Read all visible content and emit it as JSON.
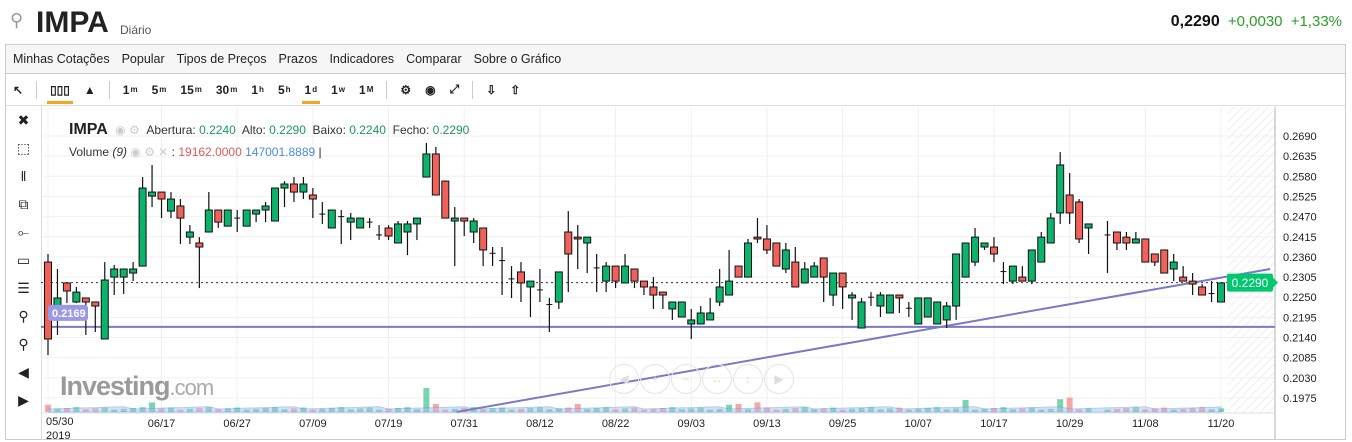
{
  "header": {
    "symbol": "IMPA",
    "period": "Diário",
    "price": "0,2290",
    "change": "+0,0030",
    "change_pct": "+1,33%"
  },
  "menu": [
    "Minhas Cotações",
    "Popular",
    "Tipos de Preços",
    "Prazos",
    "Indicadores",
    "Comparar",
    "Sobre o Gráfico"
  ],
  "toolbar": {
    "intervals": [
      {
        "n": "1",
        "s": "m"
      },
      {
        "n": "5",
        "s": "m"
      },
      {
        "n": "15",
        "s": "m"
      },
      {
        "n": "30",
        "s": "m"
      },
      {
        "n": "1",
        "s": "h"
      },
      {
        "n": "5",
        "s": "h"
      },
      {
        "n": "1",
        "s": "d"
      },
      {
        "n": "1",
        "s": "w"
      },
      {
        "n": "1",
        "s": "M"
      }
    ],
    "active_interval": "1d"
  },
  "left_tools": [
    "close-icon",
    "remove-drawing-icon",
    "remove-indicators-icon",
    "windows-icon",
    "line-tool-icon",
    "rectangle-tool-icon",
    "fib-tool-icon",
    "zoom-in-icon",
    "zoom-out-icon",
    "scroll-left-icon",
    "scroll-right-icon"
  ],
  "legend": {
    "symbol": "IMPA",
    "open_label": "Abertura:",
    "open": "0.2240",
    "high_label": "Alto:",
    "high": "0.2290",
    "low_label": "Baixo:",
    "low": "0.2240",
    "close_label": "Fecho:",
    "close": "0.2290",
    "volume_label": "Volume",
    "volume_param": "(9)",
    "volume_value": "19162.0000",
    "volume_ma": "147001.8889"
  },
  "logo": {
    "main": "Investing",
    ".com": ".com"
  },
  "colors": {
    "up": "#0bb36b",
    "down": "#f0615a",
    "line": "#7b78c4",
    "last_price": "#00c86e"
  },
  "chart_data": {
    "type": "candlestick",
    "y_ticks": [
      "0.2690",
      "0.2635",
      "0.2580",
      "0.2525",
      "0.2470",
      "0.2415",
      "0.2360",
      "0.2305",
      "0.2250",
      "0.2195",
      "0.2140",
      "0.2085",
      "0.2030",
      "0.1975"
    ],
    "ylim": [
      0.1975,
      0.269
    ],
    "last_price": "0.2290",
    "horizontal_line": {
      "value": 0.2169,
      "label": "0.2169"
    },
    "trend_line": [
      [
        43.2,
        0.1937
      ],
      [
        129.2,
        0.2327
      ]
    ],
    "x_ticks": [
      {
        "i": 0,
        "label": "05/30",
        "sub": "2019"
      },
      {
        "i": 12,
        "label": "06/17"
      },
      {
        "i": 20,
        "label": "06/27"
      },
      {
        "i": 28,
        "label": "07/09"
      },
      {
        "i": 36,
        "label": "07/19"
      },
      {
        "i": 44,
        "label": "07/31"
      },
      {
        "i": 52,
        "label": "08/12"
      },
      {
        "i": 60,
        "label": "08/22"
      },
      {
        "i": 68,
        "label": "09/03"
      },
      {
        "i": 76,
        "label": "09/13"
      },
      {
        "i": 84,
        "label": "09/25"
      },
      {
        "i": 92,
        "label": "10/07"
      },
      {
        "i": 100,
        "label": "10/17"
      },
      {
        "i": 108,
        "label": "10/29"
      },
      {
        "i": 116,
        "label": "11/08"
      },
      {
        "i": 124,
        "label": "11/20"
      }
    ],
    "candles": [
      [
        0.2346,
        0.2368,
        0.2092,
        0.2136
      ],
      [
        0.2188,
        0.2327,
        0.2147,
        0.2248
      ],
      [
        0.2289,
        0.2289,
        0.2234,
        0.2267
      ],
      [
        0.2237,
        0.2278,
        0.2234,
        0.2264
      ],
      [
        0.2248,
        0.2248,
        0.2147,
        0.2237
      ],
      [
        0.2237,
        0.2237,
        0.2155,
        0.2226
      ],
      [
        0.2136,
        0.2346,
        0.2136,
        0.2297
      ],
      [
        0.2305,
        0.2338,
        0.2256,
        0.2327
      ],
      [
        0.2305,
        0.2327,
        0.2259,
        0.2327
      ],
      [
        0.2316,
        0.2346,
        0.2294,
        0.2327
      ],
      [
        0.2335,
        0.2578,
        0.2335,
        0.2548
      ],
      [
        0.2526,
        0.2611,
        0.2496,
        0.2537
      ],
      [
        0.2537,
        0.2537,
        0.2466,
        0.2518
      ],
      [
        0.2485,
        0.2537,
        0.2466,
        0.2518
      ],
      [
        0.2499,
        0.2518,
        0.2395,
        0.2466
      ],
      [
        0.2414,
        0.2447,
        0.2395,
        0.2428
      ],
      [
        0.2398,
        0.2414,
        0.2275,
        0.2387
      ],
      [
        0.2428,
        0.2537,
        0.2428,
        0.2488
      ],
      [
        0.2488,
        0.2488,
        0.2439,
        0.2455
      ],
      [
        0.2444,
        0.2488,
        0.2444,
        0.2488
      ],
      [
        0.2466,
        0.2488,
        0.2428,
        0.2466
      ],
      [
        0.2444,
        0.2488,
        0.2444,
        0.2488
      ],
      [
        0.2477,
        0.2488,
        0.2455,
        0.2488
      ],
      [
        0.2488,
        0.251,
        0.2455,
        0.2499
      ],
      [
        0.2458,
        0.2548,
        0.2458,
        0.2548
      ],
      [
        0.2548,
        0.2567,
        0.2496,
        0.2559
      ],
      [
        0.2559,
        0.2578,
        0.251,
        0.2537
      ],
      [
        0.2537,
        0.2578,
        0.2518,
        0.2559
      ],
      [
        0.2529,
        0.2548,
        0.2466,
        0.2518
      ],
      [
        0.2477,
        0.251,
        0.245,
        0.2477
      ],
      [
        0.2439,
        0.2488,
        0.2439,
        0.2488
      ],
      [
        0.247,
        0.2488,
        0.2395,
        0.247
      ],
      [
        0.2455,
        0.248,
        0.2406,
        0.2466
      ],
      [
        0.2439,
        0.2466,
        0.2439,
        0.2466
      ],
      [
        0.2455,
        0.2466,
        0.2439,
        0.2455
      ],
      [
        0.242,
        0.2447,
        0.2406,
        0.242
      ],
      [
        0.2439,
        0.2447,
        0.2406,
        0.2417
      ],
      [
        0.2398,
        0.2458,
        0.2398,
        0.245
      ],
      [
        0.2428,
        0.2458,
        0.2365,
        0.245
      ],
      [
        0.245,
        0.2466,
        0.2406,
        0.2466
      ],
      [
        0.2578,
        0.2671,
        0.2578,
        0.2641
      ],
      [
        0.2641,
        0.266,
        0.2529,
        0.2529
      ],
      [
        0.2567,
        0.2567,
        0.2466,
        0.2466
      ],
      [
        0.2458,
        0.2496,
        0.2335,
        0.2466
      ],
      [
        0.2466,
        0.2466,
        0.2417,
        0.2458
      ],
      [
        0.2428,
        0.2466,
        0.2398,
        0.2458
      ],
      [
        0.2439,
        0.2439,
        0.2335,
        0.2379
      ],
      [
        0.237,
        0.2387,
        0.2335,
        0.237
      ],
      [
        0.235,
        0.2387,
        0.2256,
        0.235
      ],
      [
        0.23,
        0.2335,
        0.2248,
        0.23
      ],
      [
        0.2319,
        0.2346,
        0.2237,
        0.2289
      ],
      [
        0.2278,
        0.2294,
        0.2196,
        0.2294
      ],
      [
        0.227,
        0.2327,
        0.2237,
        0.227
      ],
      [
        0.223,
        0.2248,
        0.2155,
        0.223
      ],
      [
        0.2237,
        0.2319,
        0.2218,
        0.2319
      ],
      [
        0.2428,
        0.2485,
        0.2264,
        0.2368
      ],
      [
        0.2414,
        0.2447,
        0.2327,
        0.2409
      ],
      [
        0.2398,
        0.2414,
        0.2316,
        0.2414
      ],
      [
        0.233,
        0.2368,
        0.2264,
        0.233
      ],
      [
        0.2294,
        0.2346,
        0.2264,
        0.2335
      ],
      [
        0.2335,
        0.2335,
        0.2275,
        0.2294
      ],
      [
        0.2289,
        0.2368,
        0.2289,
        0.2335
      ],
      [
        0.2327,
        0.2327,
        0.2275,
        0.2294
      ],
      [
        0.2294,
        0.2294,
        0.2256,
        0.2278
      ],
      [
        0.2278,
        0.2305,
        0.2218,
        0.2256
      ],
      [
        0.2264,
        0.2264,
        0.2218,
        0.2256
      ],
      [
        0.2218,
        0.2237,
        0.2188,
        0.2237
      ],
      [
        0.2196,
        0.2237,
        0.2196,
        0.2237
      ],
      [
        0.2177,
        0.2218,
        0.2136,
        0.2188
      ],
      [
        0.2177,
        0.2226,
        0.2177,
        0.2207
      ],
      [
        0.2188,
        0.2248,
        0.2188,
        0.2207
      ],
      [
        0.2237,
        0.2327,
        0.2226,
        0.2278
      ],
      [
        0.2256,
        0.2379,
        0.2256,
        0.2294
      ],
      [
        0.2335,
        0.2335,
        0.2305,
        0.2305
      ],
      [
        0.2305,
        0.2409,
        0.2305,
        0.2398
      ],
      [
        0.2414,
        0.2466,
        0.2398,
        0.2409
      ],
      [
        0.2409,
        0.2447,
        0.2368,
        0.2379
      ],
      [
        0.2398,
        0.2398,
        0.2335,
        0.2335
      ],
      [
        0.2327,
        0.2398,
        0.2316,
        0.2379
      ],
      [
        0.2346,
        0.2387,
        0.2278,
        0.2278
      ],
      [
        0.2289,
        0.2346,
        0.2289,
        0.2327
      ],
      [
        0.2305,
        0.2346,
        0.2305,
        0.2335
      ],
      [
        0.2357,
        0.2357,
        0.2237,
        0.2305
      ],
      [
        0.2256,
        0.2316,
        0.2226,
        0.2316
      ],
      [
        0.2316,
        0.2316,
        0.2218,
        0.2278
      ],
      [
        0.2248,
        0.2264,
        0.2188,
        0.2256
      ],
      [
        0.2166,
        0.2248,
        0.2166,
        0.2237
      ],
      [
        0.225,
        0.2264,
        0.2226,
        0.225
      ],
      [
        0.2226,
        0.2264,
        0.2196,
        0.2256
      ],
      [
        0.2207,
        0.2256,
        0.2207,
        0.2256
      ],
      [
        0.2256,
        0.2256,
        0.2207,
        0.2248
      ],
      [
        0.222,
        0.2237,
        0.2196,
        0.222
      ],
      [
        0.2177,
        0.2248,
        0.2177,
        0.2248
      ],
      [
        0.2196,
        0.2248,
        0.2196,
        0.2248
      ],
      [
        0.2177,
        0.2237,
        0.2177,
        0.2237
      ],
      [
        0.2188,
        0.2237,
        0.2166,
        0.2226
      ],
      [
        0.2226,
        0.2368,
        0.2188,
        0.2368
      ],
      [
        0.2305,
        0.2398,
        0.2305,
        0.2398
      ],
      [
        0.2346,
        0.2439,
        0.2335,
        0.2414
      ],
      [
        0.2387,
        0.2398,
        0.2379,
        0.2398
      ],
      [
        0.2387,
        0.2414,
        0.2346,
        0.2368
      ],
      [
        0.232,
        0.2346,
        0.2286,
        0.232
      ],
      [
        0.2294,
        0.2335,
        0.2286,
        0.2335
      ],
      [
        0.2305,
        0.2335,
        0.2294,
        0.2294
      ],
      [
        0.2294,
        0.2379,
        0.2286,
        0.2379
      ],
      [
        0.2346,
        0.2428,
        0.2346,
        0.2414
      ],
      [
        0.2398,
        0.248,
        0.2398,
        0.2466
      ],
      [
        0.248,
        0.2646,
        0.245,
        0.2611
      ],
      [
        0.2529,
        0.2589,
        0.245,
        0.248
      ],
      [
        0.251,
        0.2518,
        0.2398,
        0.2409
      ],
      [
        0.2439,
        0.245,
        0.2368,
        0.245
      ],
      null,
      [
        0.242,
        0.2458,
        0.2316,
        0.242
      ],
      [
        0.2428,
        0.2428,
        0.2379,
        0.2398
      ],
      [
        0.2414,
        0.2428,
        0.2379,
        0.2398
      ],
      [
        0.2398,
        0.2428,
        0.2398,
        0.2409
      ],
      [
        0.2409,
        0.2409,
        0.2346,
        0.2346
      ],
      [
        0.2368,
        0.2368,
        0.2335,
        0.2346
      ],
      [
        0.2379,
        0.2379,
        0.2316,
        0.2316
      ],
      [
        0.2327,
        0.2368,
        0.2294,
        0.2346
      ],
      [
        0.2305,
        0.2335,
        0.2294,
        0.2294
      ],
      [
        0.2294,
        0.2316,
        0.2256,
        0.2286
      ],
      [
        0.2278,
        0.2286,
        0.2256,
        0.2256
      ],
      [
        0.226,
        0.2294,
        0.2237,
        0.226
      ],
      [
        0.2237,
        0.2289,
        0.2237,
        0.2289
      ]
    ],
    "volume_spikes": {
      "40": 3,
      "41": 1,
      "107": 1.6,
      "108": 1.8,
      "97": 1.5,
      "75": 1.2,
      "73": 1,
      "72": 0.9,
      "56": 1,
      "11": 1.2,
      "0": 0.9
    }
  }
}
